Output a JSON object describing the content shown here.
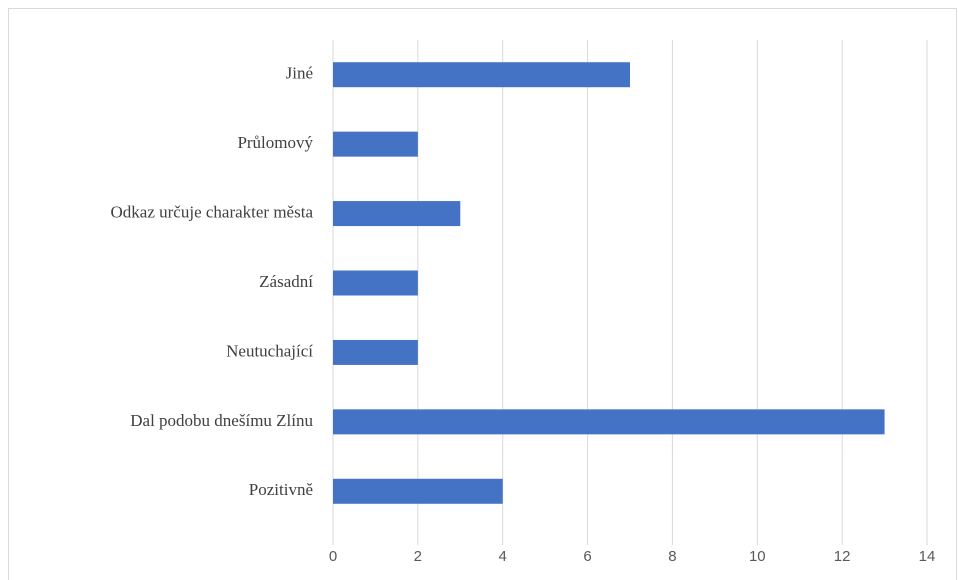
{
  "chart_data": {
    "type": "bar",
    "orientation": "horizontal",
    "categories": [
      "Jiné",
      "Průlomový",
      "Odkaz určuje charakter města",
      "Zásadní",
      "Neutuchající",
      "Dal podobu dnešímu Zlínu",
      "Pozitivně"
    ],
    "values": [
      7,
      2,
      3,
      2,
      2,
      13,
      4
    ],
    "color": "#4472c4",
    "xlim": [
      0,
      14
    ],
    "xticks": [
      0,
      2,
      4,
      6,
      8,
      10,
      12,
      14
    ],
    "grid": true
  }
}
